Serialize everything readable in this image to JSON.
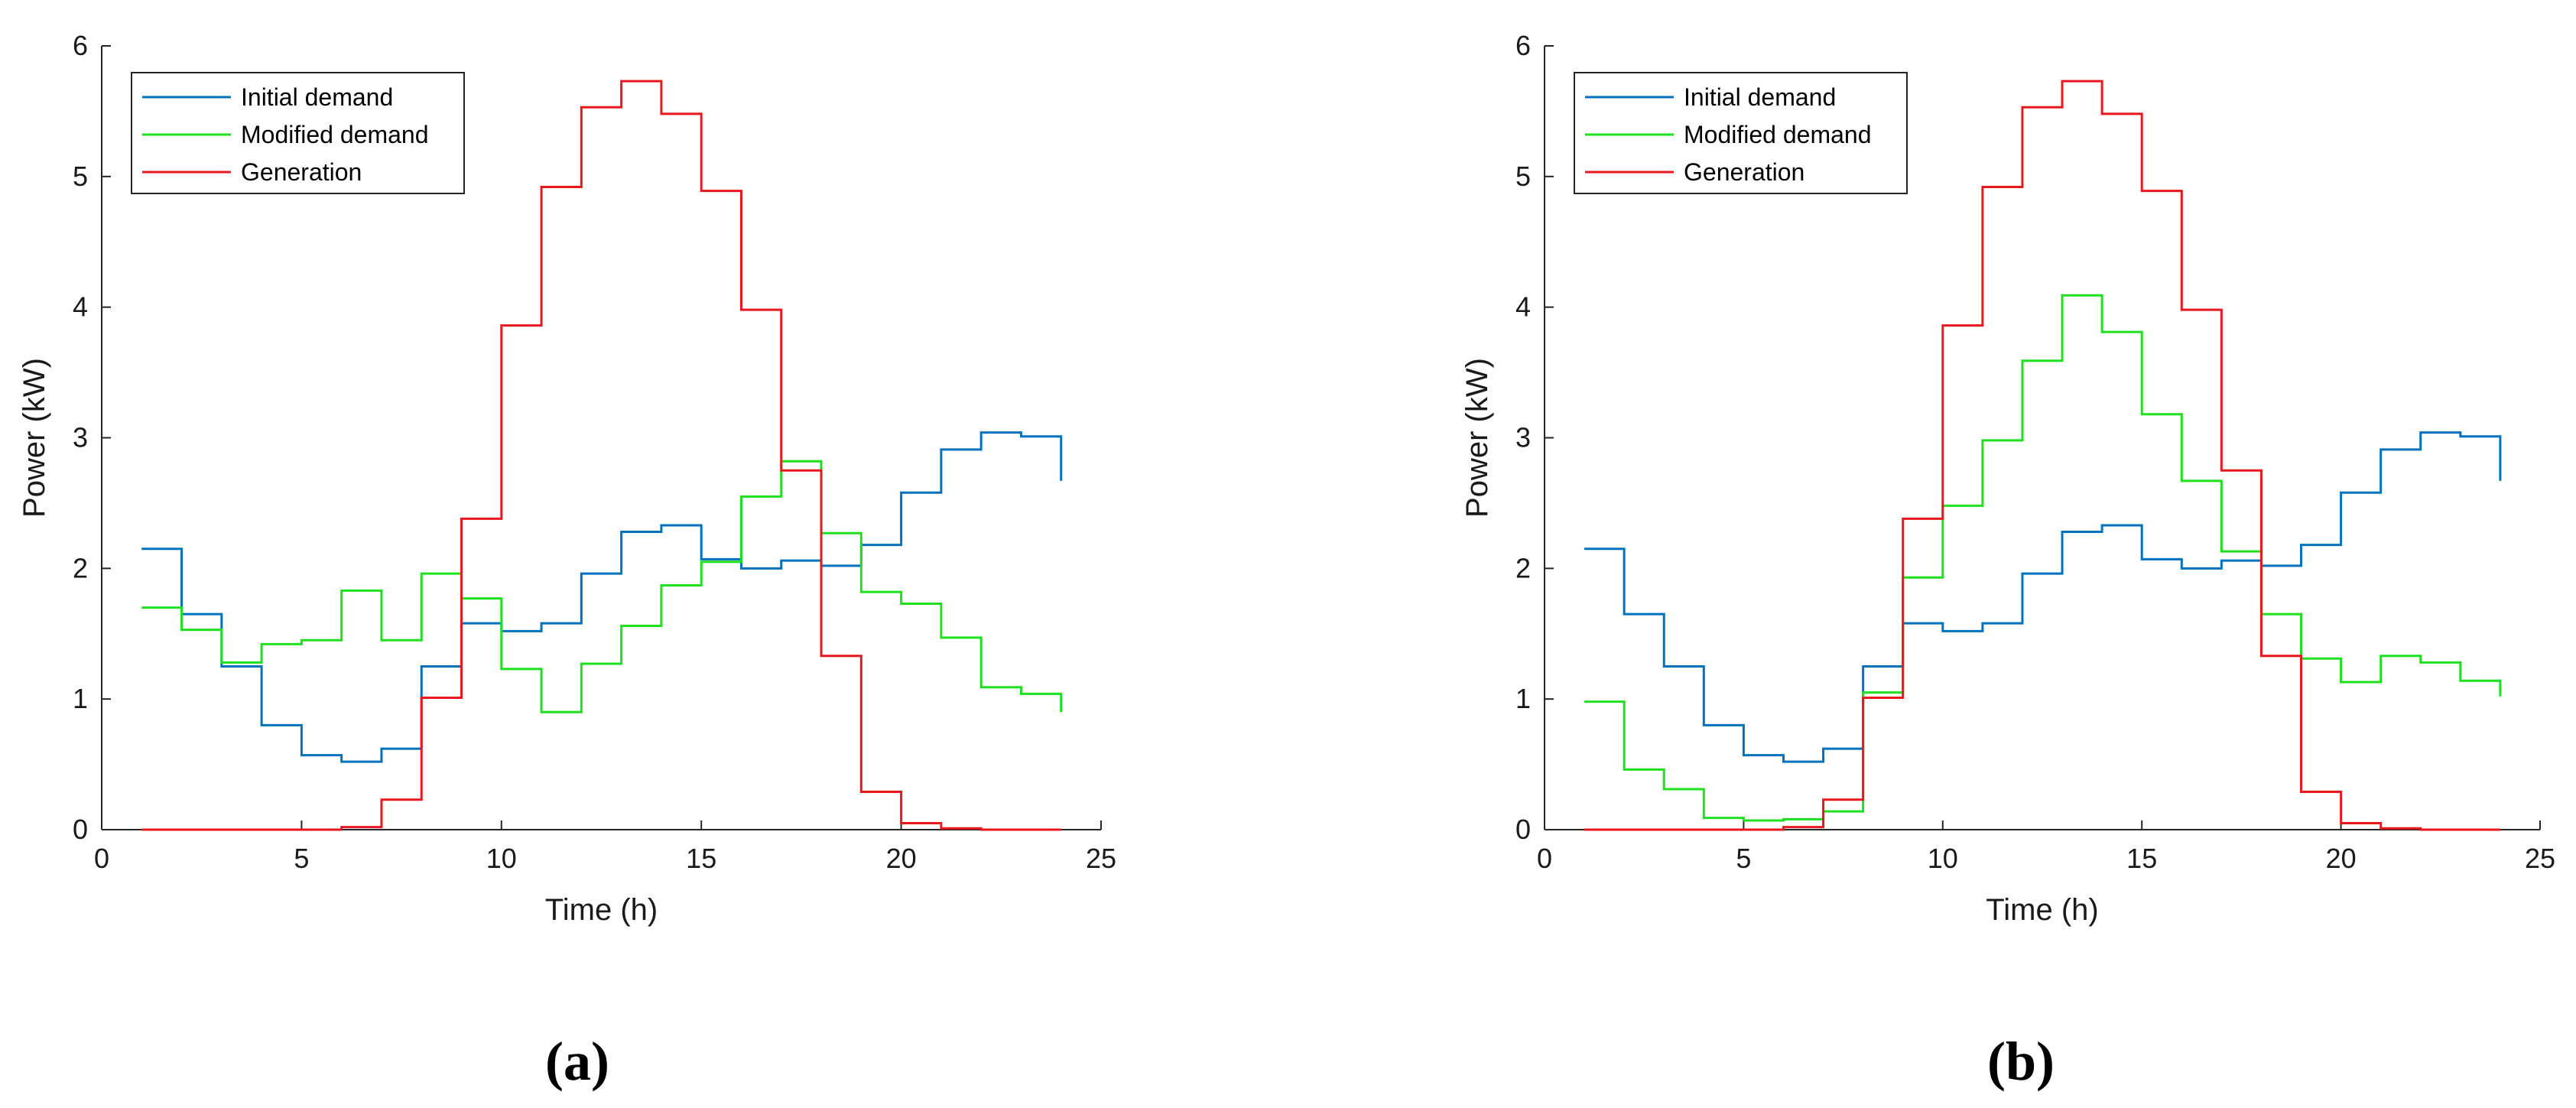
{
  "chart_data": [
    {
      "type": "line",
      "step": "post",
      "panel_label": "(a)",
      "xlabel": "Time (h)",
      "ylabel": "Power (kW)",
      "xlim": [
        0,
        25
      ],
      "ylim": [
        0,
        6
      ],
      "xticks": [
        "0",
        "5",
        "10",
        "15",
        "20",
        "25"
      ],
      "yticks": [
        "0",
        "1",
        "2",
        "3",
        "4",
        "5",
        "6"
      ],
      "legend_position": "top-left",
      "x": [
        1,
        2,
        3,
        4,
        5,
        6,
        7,
        8,
        9,
        10,
        11,
        12,
        13,
        14,
        15,
        16,
        17,
        18,
        19,
        20,
        21,
        22,
        23,
        24
      ],
      "series": [
        {
          "name": "Initial demand",
          "color": "#0072BD",
          "values": [
            2.15,
            1.65,
            1.25,
            0.8,
            0.57,
            0.52,
            0.62,
            1.25,
            1.58,
            1.52,
            1.58,
            1.96,
            2.28,
            2.33,
            2.07,
            2.0,
            2.06,
            2.02,
            2.18,
            2.58,
            2.91,
            3.04,
            3.01,
            2.67
          ]
        },
        {
          "name": "Modified demand",
          "color": "#1EE01E",
          "values": [
            1.7,
            1.53,
            1.28,
            1.42,
            1.45,
            1.83,
            1.45,
            1.96,
            1.77,
            1.23,
            0.9,
            1.27,
            1.56,
            1.87,
            2.05,
            2.55,
            2.82,
            2.27,
            1.82,
            1.73,
            1.47,
            1.09,
            1.04,
            0.9
          ]
        },
        {
          "name": "Generation",
          "color": "#E8191E",
          "values": [
            0,
            0,
            0,
            0,
            0,
            0.02,
            0.23,
            1.01,
            2.38,
            3.86,
            4.92,
            5.53,
            5.73,
            5.48,
            4.89,
            3.98,
            2.75,
            1.33,
            0.29,
            0.05,
            0.01,
            0,
            0,
            0
          ]
        }
      ]
    },
    {
      "type": "line",
      "step": "post",
      "panel_label": "(b)",
      "xlabel": "Time (h)",
      "ylabel": "Power (kW)",
      "xlim": [
        0,
        25
      ],
      "ylim": [
        0,
        6
      ],
      "xticks": [
        "0",
        "5",
        "10",
        "15",
        "20",
        "25"
      ],
      "yticks": [
        "0",
        "1",
        "2",
        "3",
        "4",
        "5",
        "6"
      ],
      "legend_position": "top-left",
      "x": [
        1,
        2,
        3,
        4,
        5,
        6,
        7,
        8,
        9,
        10,
        11,
        12,
        13,
        14,
        15,
        16,
        17,
        18,
        19,
        20,
        21,
        22,
        23,
        24
      ],
      "series": [
        {
          "name": "Initial demand",
          "color": "#0072BD",
          "values": [
            2.15,
            1.65,
            1.25,
            0.8,
            0.57,
            0.52,
            0.62,
            1.25,
            1.58,
            1.52,
            1.58,
            1.96,
            2.28,
            2.33,
            2.07,
            2.0,
            2.06,
            2.02,
            2.18,
            2.58,
            2.91,
            3.04,
            3.01,
            2.67
          ]
        },
        {
          "name": "Modified demand",
          "color": "#1EE01E",
          "values": [
            0.98,
            0.46,
            0.31,
            0.09,
            0.07,
            0.08,
            0.14,
            1.05,
            1.93,
            2.48,
            2.98,
            3.59,
            4.09,
            3.81,
            3.18,
            2.67,
            2.13,
            1.65,
            1.31,
            1.13,
            1.33,
            1.28,
            1.14,
            1.02
          ]
        },
        {
          "name": "Generation",
          "color": "#E8191E",
          "values": [
            0,
            0,
            0,
            0,
            0,
            0.02,
            0.23,
            1.01,
            2.38,
            3.86,
            4.92,
            5.53,
            5.73,
            5.48,
            4.89,
            3.98,
            2.75,
            1.33,
            0.29,
            0.05,
            0.01,
            0,
            0,
            0
          ]
        }
      ]
    }
  ]
}
